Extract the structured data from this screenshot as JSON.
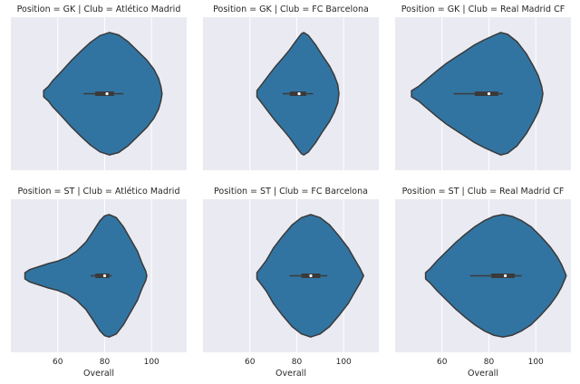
{
  "chart_data": {
    "type": "violin",
    "orientation": "horizontal",
    "xlabel": "Overall",
    "xlim": [
      40,
      115
    ],
    "xticks": [
      60,
      80,
      100
    ],
    "grid": true,
    "background": "#eaeaf2",
    "violin_color": "#3274a1",
    "outline_color": "#3a3a3a",
    "facets": [
      {
        "title": "Position = GK | Club = Atlético Madrid",
        "profile": [
          [
            54,
            0.05
          ],
          [
            56,
            0.12
          ],
          [
            58,
            0.22
          ],
          [
            62,
            0.38
          ],
          [
            66,
            0.55
          ],
          [
            70,
            0.7
          ],
          [
            74,
            0.84
          ],
          [
            78,
            0.95
          ],
          [
            82,
            1.0
          ],
          [
            86,
            0.96
          ],
          [
            90,
            0.85
          ],
          [
            94,
            0.7
          ],
          [
            98,
            0.55
          ],
          [
            101,
            0.4
          ],
          [
            103,
            0.25
          ],
          [
            104,
            0.12
          ],
          [
            104.5,
            0.0
          ]
        ],
        "whisker": [
          71,
          88
        ],
        "iqr": [
          76,
          84
        ],
        "median": 81
      },
      {
        "title": "Position = GK | Club = FC Barcelona",
        "profile": [
          [
            63,
            0.05
          ],
          [
            65,
            0.15
          ],
          [
            68,
            0.3
          ],
          [
            71,
            0.45
          ],
          [
            74,
            0.58
          ],
          [
            77,
            0.72
          ],
          [
            80,
            0.88
          ],
          [
            82,
            0.98
          ],
          [
            83,
            1.0
          ],
          [
            85,
            0.95
          ],
          [
            88,
            0.8
          ],
          [
            91,
            0.62
          ],
          [
            94,
            0.45
          ],
          [
            96,
            0.3
          ],
          [
            97.5,
            0.15
          ],
          [
            98,
            0.0
          ]
        ],
        "whisker": [
          74,
          87
        ],
        "iqr": [
          77,
          84
        ],
        "median": 81
      },
      {
        "title": "Position = GK | Club = Real Madrid CF",
        "profile": [
          [
            47,
            0.05
          ],
          [
            50,
            0.12
          ],
          [
            54,
            0.25
          ],
          [
            58,
            0.38
          ],
          [
            62,
            0.5
          ],
          [
            66,
            0.6
          ],
          [
            70,
            0.7
          ],
          [
            74,
            0.8
          ],
          [
            78,
            0.88
          ],
          [
            82,
            0.95
          ],
          [
            85,
            1.0
          ],
          [
            88,
            0.97
          ],
          [
            92,
            0.85
          ],
          [
            96,
            0.65
          ],
          [
            99,
            0.45
          ],
          [
            101,
            0.3
          ],
          [
            102.5,
            0.12
          ],
          [
            103,
            0.0
          ]
        ],
        "whisker": [
          65,
          86
        ],
        "iqr": [
          74,
          84
        ],
        "median": 80
      },
      {
        "title": "Position = ST | Club = Atlético Madrid",
        "profile": [
          [
            46,
            0.05
          ],
          [
            48,
            0.1
          ],
          [
            52,
            0.15
          ],
          [
            56,
            0.2
          ],
          [
            60,
            0.24
          ],
          [
            64,
            0.3
          ],
          [
            68,
            0.4
          ],
          [
            72,
            0.55
          ],
          [
            75,
            0.72
          ],
          [
            78,
            0.9
          ],
          [
            80,
            0.98
          ],
          [
            82,
            1.0
          ],
          [
            85,
            0.95
          ],
          [
            88,
            0.8
          ],
          [
            91,
            0.6
          ],
          [
            94,
            0.4
          ],
          [
            96,
            0.2
          ],
          [
            97.5,
            0.08
          ],
          [
            98,
            0.0
          ]
        ],
        "whisker": [
          74,
          83
        ],
        "iqr": [
          76,
          82
        ],
        "median": 80
      },
      {
        "title": "Position = ST | Club = FC Barcelona",
        "profile": [
          [
            63,
            0.05
          ],
          [
            65,
            0.15
          ],
          [
            67,
            0.25
          ],
          [
            70,
            0.45
          ],
          [
            74,
            0.65
          ],
          [
            78,
            0.83
          ],
          [
            82,
            0.95
          ],
          [
            86,
            1.0
          ],
          [
            90,
            0.95
          ],
          [
            94,
            0.83
          ],
          [
            98,
            0.65
          ],
          [
            102,
            0.45
          ],
          [
            105,
            0.25
          ],
          [
            107,
            0.12
          ],
          [
            108.5,
            0.0
          ]
        ],
        "whisker": [
          77,
          93
        ],
        "iqr": [
          82,
          90
        ],
        "median": 86
      },
      {
        "title": "Position = ST | Club = Real Madrid CF",
        "profile": [
          [
            53,
            0.05
          ],
          [
            55,
            0.12
          ],
          [
            58,
            0.25
          ],
          [
            62,
            0.4
          ],
          [
            66,
            0.55
          ],
          [
            70,
            0.68
          ],
          [
            74,
            0.8
          ],
          [
            78,
            0.9
          ],
          [
            82,
            0.97
          ],
          [
            86,
            1.0
          ],
          [
            90,
            0.97
          ],
          [
            94,
            0.9
          ],
          [
            98,
            0.8
          ],
          [
            102,
            0.65
          ],
          [
            106,
            0.48
          ],
          [
            109,
            0.32
          ],
          [
            111,
            0.18
          ],
          [
            112.5,
            0.05
          ],
          [
            113,
            0.0
          ]
        ],
        "whisker": [
          72,
          94
        ],
        "iqr": [
          81,
          91
        ],
        "median": 87
      }
    ]
  }
}
